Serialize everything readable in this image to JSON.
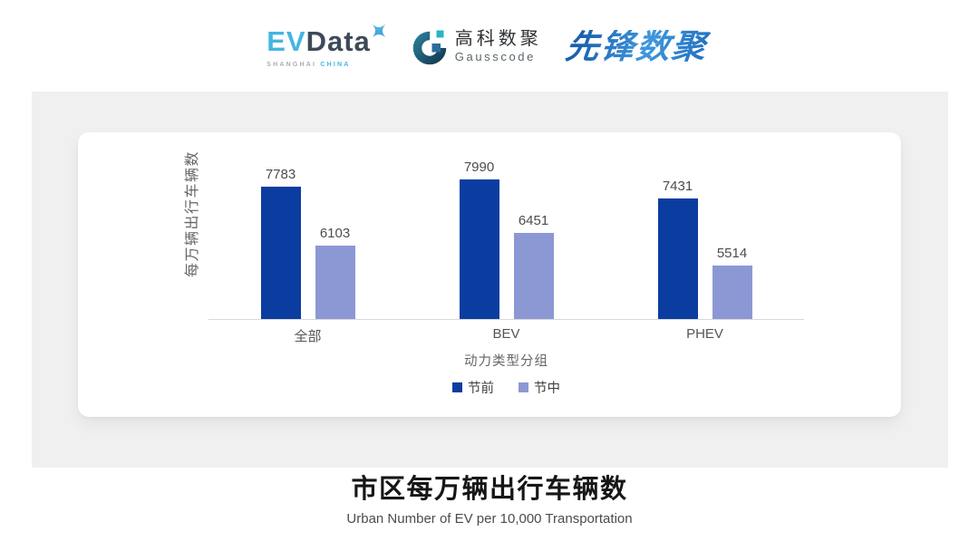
{
  "header": {
    "evdata": {
      "text_primary": "EV",
      "text_secondary": "Data",
      "subtext_primary": "SHANGHAI",
      "subtext_secondary": "CHINA"
    },
    "gausscode": {
      "name_cn": "高科数聚",
      "name_en": "Gausscode"
    },
    "pioneer": {
      "name": "先锋数聚"
    }
  },
  "chart_data": {
    "type": "bar",
    "categories": [
      "全部",
      "BEV",
      "PHEV"
    ],
    "series": [
      {
        "name": "节前",
        "color": "#0B3DA1",
        "values": [
          7783,
          7990,
          7431
        ]
      },
      {
        "name": "节中",
        "color": "#8C98D3",
        "values": [
          6103,
          6451,
          5514
        ]
      }
    ],
    "ylabel": "每万辆出行车辆数",
    "xlabel": "动力类型分组",
    "ylim": [
      4000,
      8600
    ],
    "grid": false,
    "legend_position": "bottom",
    "value_labels": true,
    "axis_line_color": "#d9d9d9"
  },
  "footer": {
    "title": "市区每万辆出行车辆数",
    "subtitle": "Urban Number of EV per 10,000 Transportation"
  }
}
